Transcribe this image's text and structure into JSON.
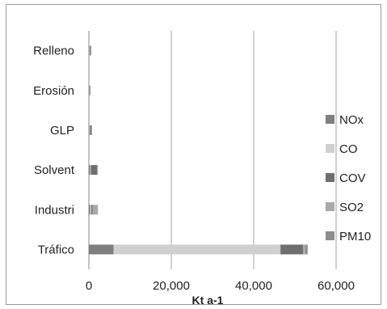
{
  "chart_data": {
    "type": "bar",
    "orientation": "horizontal",
    "stacked": true,
    "categories": [
      "Tráfico",
      "Industri",
      "Solvent",
      "GLP",
      "Erosión",
      "Relleno"
    ],
    "series": [
      {
        "name": "NOx",
        "color": "#7f7f7f",
        "values": [
          6000,
          300,
          300,
          150,
          80,
          100
        ]
      },
      {
        "name": "CO",
        "color": "#d0d0d0",
        "values": [
          40500,
          300,
          200,
          150,
          80,
          150
        ]
      },
      {
        "name": "COV",
        "color": "#6e6e6e",
        "values": [
          5500,
          300,
          1500,
          300,
          100,
          200
        ]
      },
      {
        "name": "SO2",
        "color": "#a9a9a9",
        "values": [
          500,
          1200,
          100,
          50,
          50,
          50
        ]
      },
      {
        "name": "PM10",
        "color": "#8c8c8c",
        "values": [
          600,
          100,
          50,
          50,
          50,
          50
        ]
      }
    ],
    "xlabel": "Kt a-1",
    "xticks": [
      "0",
      "20,000",
      "40,000",
      "60,000"
    ],
    "xlim": [
      0,
      60000
    ],
    "grid": true,
    "legend": "right"
  }
}
